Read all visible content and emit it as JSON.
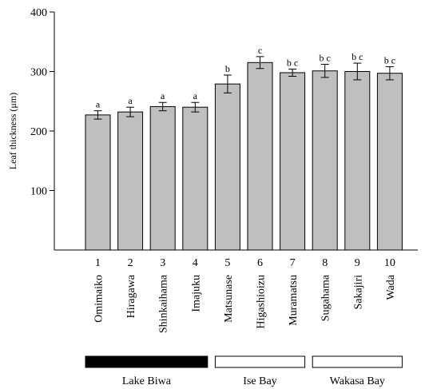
{
  "chart_data": {
    "type": "bar",
    "ylabel": "Leaf thickness (μm)",
    "ylim": [
      0,
      400
    ],
    "yticks": [
      100,
      200,
      300,
      400
    ],
    "grid": false,
    "bar_color": "#bfbfbf",
    "categories": [
      "1",
      "2",
      "3",
      "4",
      "5",
      "6",
      "7",
      "8",
      "9",
      "10"
    ],
    "site_names": [
      "Omimaiko",
      "Hiragawa",
      "Shinkaihama",
      "Imajuku",
      "Matsunase",
      "Higashioizu",
      "Muramatsu",
      "Sugahama",
      "Sakajiri",
      "Wada"
    ],
    "values": [
      227,
      232,
      241,
      240,
      279,
      315,
      298,
      301,
      300,
      297
    ],
    "errors": [
      7,
      8,
      7,
      8,
      15,
      10,
      6,
      11,
      14,
      11
    ],
    "significance_letters": [
      "a",
      "a",
      "a",
      "a",
      "b",
      "c",
      "b c",
      "b c",
      "b c",
      "b c"
    ],
    "regions": [
      {
        "name": "Lake Biwa",
        "from": 1,
        "to": 4,
        "fill": "#000000"
      },
      {
        "name": "Ise Bay",
        "from": 5,
        "to": 7,
        "fill": "#ffffff"
      },
      {
        "name": "Wakasa Bay",
        "from": 8,
        "to": 10,
        "fill": "#ffffff"
      }
    ]
  }
}
